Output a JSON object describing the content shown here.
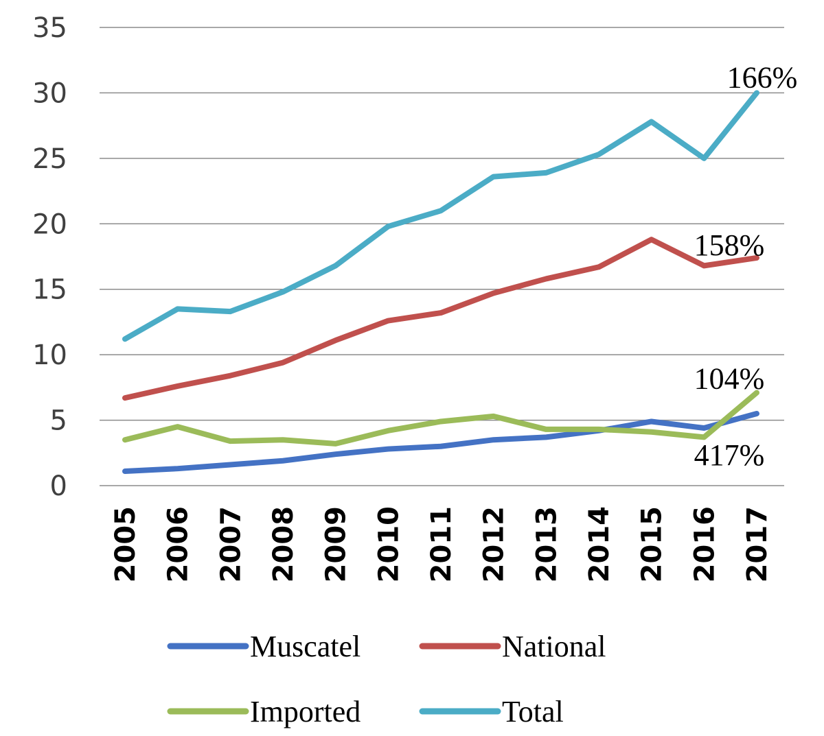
{
  "chart_data": {
    "type": "line",
    "title": "",
    "xlabel": "",
    "ylabel": "",
    "ylim": [
      0,
      35
    ],
    "yticks": [
      0,
      5,
      10,
      15,
      20,
      25,
      30,
      35
    ],
    "grid": true,
    "legend_position": "bottom",
    "categories": [
      "2005",
      "2006",
      "2007",
      "2008",
      "2009",
      "2010",
      "2011",
      "2012",
      "2013",
      "2014",
      "2015",
      "2016",
      "2017"
    ],
    "series": [
      {
        "name": "Muscatel",
        "color": "#4472C4",
        "values": [
          1.1,
          1.3,
          1.6,
          1.9,
          2.4,
          2.8,
          3.0,
          3.5,
          3.7,
          4.2,
          4.9,
          4.4,
          5.5
        ]
      },
      {
        "name": "National",
        "color": "#C0504D",
        "values": [
          6.7,
          7.6,
          8.4,
          9.4,
          11.1,
          12.6,
          13.2,
          14.7,
          15.8,
          16.7,
          18.8,
          16.8,
          17.4
        ]
      },
      {
        "name": "Imported",
        "color": "#9BBB59",
        "values": [
          3.5,
          4.5,
          3.4,
          3.5,
          3.2,
          4.2,
          4.9,
          5.3,
          4.3,
          4.3,
          4.1,
          3.7,
          7.1
        ]
      },
      {
        "name": "Total",
        "color": "#4BACC6",
        "values": [
          11.2,
          13.5,
          13.3,
          14.8,
          16.8,
          19.8,
          21.0,
          23.6,
          23.9,
          25.3,
          27.8,
          25.0,
          30.0
        ]
      }
    ],
    "annotations": [
      {
        "text": "166%",
        "series": "Total"
      },
      {
        "text": "158%",
        "series": "National"
      },
      {
        "text": "104%",
        "series": "Imported"
      },
      {
        "text": "417%",
        "series": "Muscatel"
      }
    ]
  }
}
